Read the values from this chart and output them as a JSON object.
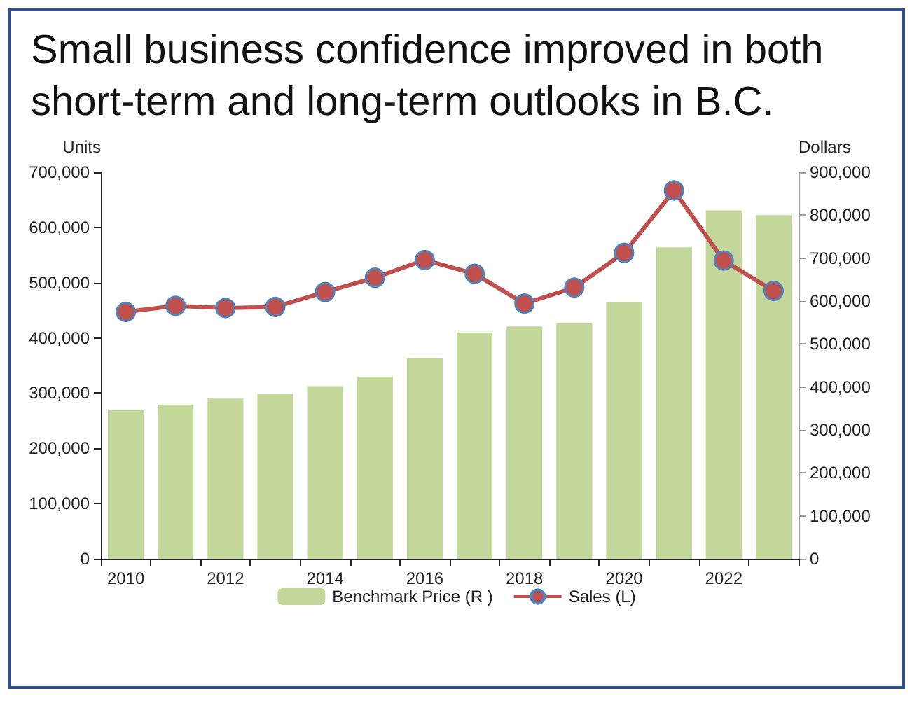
{
  "chart_data": {
    "type": "bar",
    "title": "Small business confidence improved in both short-term and long-term outlooks in B.C.",
    "ylabel": "Units",
    "y2label": "Dollars",
    "categories": [
      "2010",
      null,
      "2012",
      null,
      "2014",
      null,
      "2016",
      null,
      "2018",
      null,
      "2020",
      null,
      "2022",
      null
    ],
    "series": [
      {
        "name": "Benchmark Price (R )",
        "axis": "y2",
        "color": "#c4d79b",
        "values": [
          346000,
          359000,
          373000,
          384000,
          402000,
          424000,
          468000,
          527000,
          541000,
          549000,
          597000,
          725000,
          811000,
          800000
        ]
      },
      {
        "name": "Sales (L)",
        "type": "line",
        "color": "#c0504d",
        "values": [
          447000,
          458000,
          454000,
          456000,
          483000,
          509000,
          541000,
          516000,
          462000,
          491000,
          554000,
          667000,
          540000,
          485000
        ]
      }
    ],
    "ylim": [
      0,
      700000
    ],
    "yticks": [
      0,
      {
        "value": 100000,
        "label": "100,000"
      },
      {
        "value": 200000,
        "label": "200,000"
      },
      {
        "value": 300000,
        "label": "300,000"
      },
      {
        "value": 400000,
        "label": "400,000"
      },
      {
        "value": 500000,
        "label": "500,000"
      },
      {
        "value": 600000,
        "label": "600,000"
      },
      {
        "value": 700000,
        "label": "700,000"
      }
    ],
    "y2lim": [
      0,
      900000
    ],
    "y2ticks": [
      0,
      {
        "value": 100000,
        "label": "100,000"
      },
      {
        "value": 200000,
        "label": "200,000"
      },
      {
        "value": 300000,
        "label": "300,000"
      },
      {
        "value": 400000,
        "label": "400,000"
      },
      {
        "value": 500000,
        "label": "500,000"
      },
      {
        "value": 600000,
        "label": "600,000"
      },
      {
        "value": 700000,
        "label": "700,000"
      },
      {
        "value": 800000,
        "label": "800,000"
      },
      {
        "value": 900000,
        "label": "900,000"
      }
    ],
    "grid": false,
    "legend": "bottom",
    "marker": "circle",
    "line_style": "solid"
  }
}
